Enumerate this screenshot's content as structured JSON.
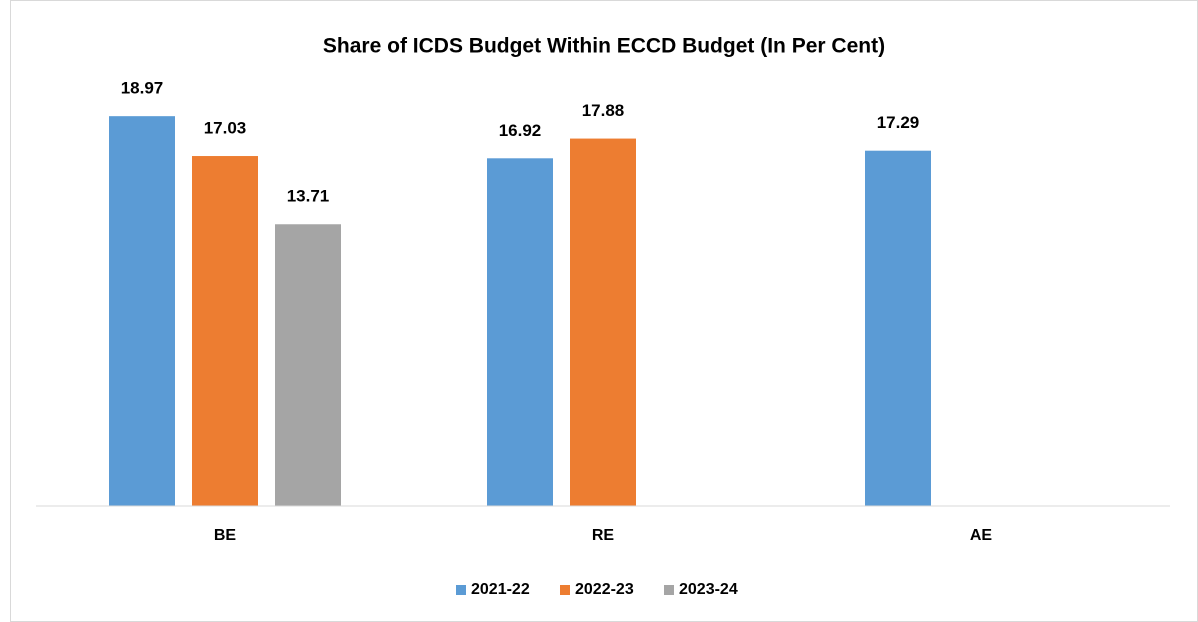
{
  "chart_data": {
    "type": "bar",
    "title": "Share of ICDS Budget Within ECCD Budget (In Per Cent)",
    "categories": [
      "BE",
      "RE",
      "AE"
    ],
    "series": [
      {
        "name": "2021-22",
        "color": "#5b9bd5",
        "values": [
          18.97,
          16.92,
          17.29
        ]
      },
      {
        "name": "2022-23",
        "color": "#ed7d31",
        "values": [
          17.03,
          17.88,
          null
        ]
      },
      {
        "name": "2023-24",
        "color": "#a5a5a5",
        "values": [
          13.71,
          null,
          null
        ]
      }
    ],
    "ylim": [
      0,
      20
    ],
    "legend": "bottom"
  }
}
